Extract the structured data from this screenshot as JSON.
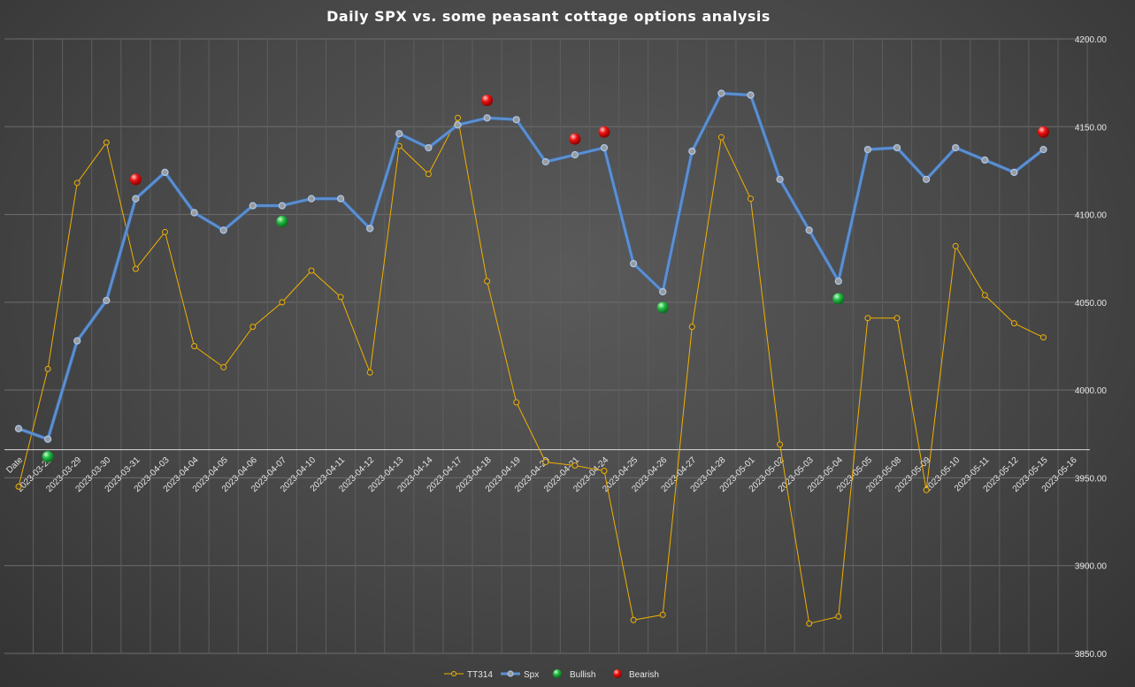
{
  "chart_data": {
    "type": "line",
    "title": "Daily SPX vs. some peasant cottage options analysis",
    "xlabel": "",
    "ylabel": "",
    "ylim": [
      3850,
      4200
    ],
    "ytick_step": 50,
    "y_ticks": [
      "3850.00",
      "3900.00",
      "3950.00",
      "4000.00",
      "4050.00",
      "4100.00",
      "4150.00",
      "4200.00"
    ],
    "baseline": 3966,
    "grid": true,
    "legend_position": "bottom",
    "categories": [
      "Date",
      "2023-03-28",
      "2023-03-29",
      "2023-03-30",
      "2023-03-31",
      "2023-04-03",
      "2023-04-04",
      "2023-04-05",
      "2023-04-06",
      "2023-04-07",
      "2023-04-10",
      "2023-04-11",
      "2023-04-12",
      "2023-04-13",
      "2023-04-14",
      "2023-04-17",
      "2023-04-18",
      "2023-04-19",
      "2023-04-20",
      "2023-04-21",
      "2023-04-24",
      "2023-04-25",
      "2023-04-26",
      "2023-04-27",
      "2023-04-28",
      "2023-05-01",
      "2023-05-02",
      "2023-05-03",
      "2023-05-04",
      "2023-05-05",
      "2023-05-08",
      "2023-05-09",
      "2023-05-10",
      "2023-05-11",
      "2023-05-12",
      "2023-05-15",
      "2023-05-16"
    ],
    "series": [
      {
        "name": "TT314",
        "kind": "line-thin",
        "color": "#f0b000",
        "values": [
          3945,
          4012,
          4118,
          4141,
          4069,
          4090,
          4025,
          4013,
          4036,
          4050,
          4068,
          4053,
          4010,
          4139,
          4123,
          4155,
          4062,
          3993,
          3959,
          3957,
          3954,
          3869,
          3872,
          4036,
          4144,
          4109,
          3969,
          3867,
          3871,
          4041,
          4041,
          3943,
          4082,
          4054,
          4038,
          4030,
          null
        ]
      },
      {
        "name": "Spx",
        "kind": "line-thick",
        "color": "#5b8fd0",
        "values": [
          3978,
          3972,
          4028,
          4051,
          4109,
          4124,
          4101,
          4091,
          4105,
          4105,
          4109,
          4109,
          4092,
          4146,
          4138,
          4151,
          4155,
          4154,
          4130,
          4134,
          4138,
          4072,
          4056,
          4136,
          4169,
          4168,
          4120,
          4091,
          4062,
          4137,
          4138,
          4120,
          4138,
          4131,
          4124,
          4137,
          null
        ]
      },
      {
        "name": "Bullish",
        "kind": "marker",
        "color": "#22bb44",
        "values": [
          null,
          3962,
          null,
          null,
          null,
          null,
          null,
          null,
          null,
          4096,
          null,
          null,
          null,
          null,
          null,
          null,
          null,
          null,
          null,
          null,
          null,
          null,
          4047,
          null,
          null,
          null,
          null,
          null,
          4052,
          null,
          null,
          null,
          null,
          null,
          null,
          null,
          null
        ]
      },
      {
        "name": "Bearish",
        "kind": "marker",
        "color": "#ee1111",
        "values": [
          null,
          null,
          null,
          null,
          4120,
          null,
          null,
          null,
          null,
          null,
          null,
          null,
          null,
          null,
          null,
          null,
          4165,
          null,
          null,
          4143,
          4147,
          null,
          null,
          null,
          null,
          null,
          null,
          null,
          null,
          null,
          null,
          null,
          null,
          null,
          null,
          4147,
          null
        ]
      }
    ]
  }
}
